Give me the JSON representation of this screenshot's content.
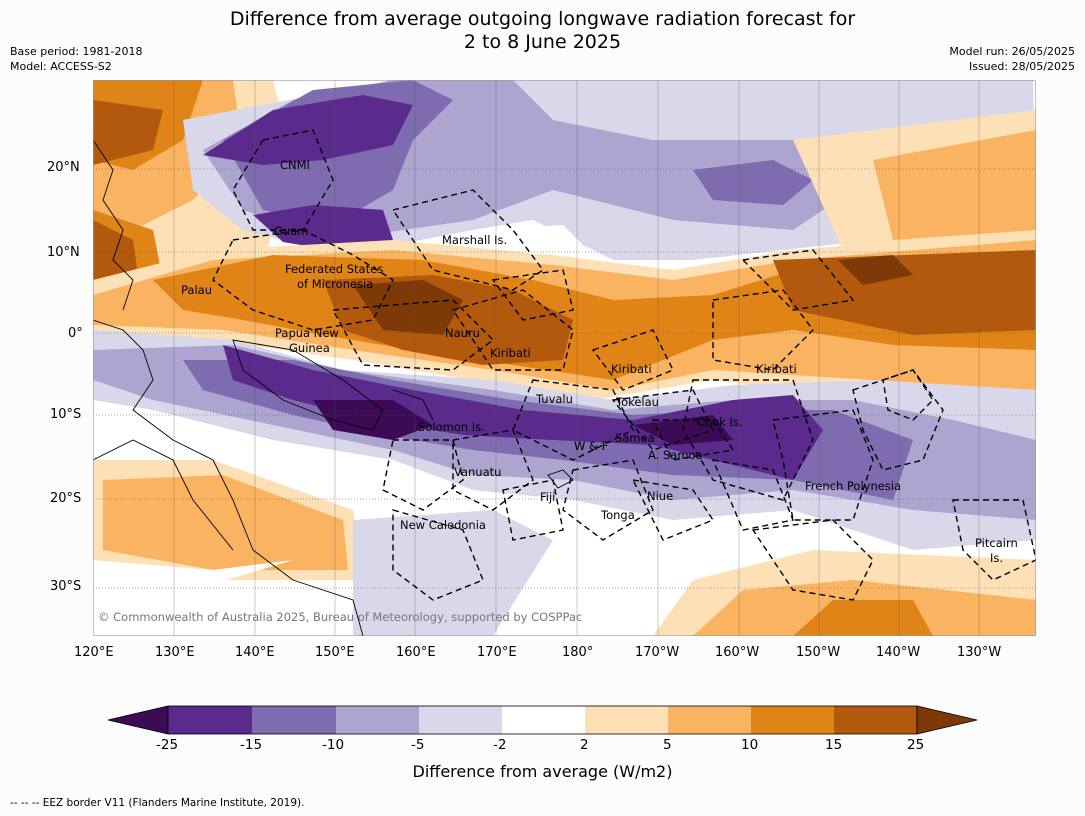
{
  "header": {
    "title_line1": "Difference from average outgoing longwave radiation forecast for",
    "title_line2": "2 to 8 June 2025",
    "base_period": "Base period: 1981-2018",
    "model": "Model: ACCESS-S2",
    "model_run": "Model run: 26/05/2025",
    "issued": "Issued: 28/05/2025"
  },
  "map": {
    "lat_ticks": [
      "20°N",
      "10°N",
      "0°",
      "10°S",
      "20°S",
      "30°S"
    ],
    "lon_ticks": [
      "120°E",
      "130°E",
      "140°E",
      "150°E",
      "160°E",
      "170°E",
      "180°",
      "170°W",
      "160°W",
      "150°W",
      "140°W",
      "130°W"
    ],
    "copyright": "© Commonwealth of Australia 2025, Bureau of Meteorology, supported by COSPPac",
    "places": [
      {
        "name": "CNMI"
      },
      {
        "name": "Guam"
      },
      {
        "name": "Marshall Is."
      },
      {
        "name": "Federated States"
      },
      {
        "name": "of Micronesia"
      },
      {
        "name": "Palau"
      },
      {
        "name": "Papua New"
      },
      {
        "name": "Guinea"
      },
      {
        "name": "Nauru"
      },
      {
        "name": "Kiribati"
      },
      {
        "name": "Kiribati"
      },
      {
        "name": "Kiribati"
      },
      {
        "name": "Tuvalu"
      },
      {
        "name": "Tokelau"
      },
      {
        "name": "Solomon Is."
      },
      {
        "name": "W & F"
      },
      {
        "name": "Samoa"
      },
      {
        "name": "A. Samoa"
      },
      {
        "name": "Cook Is."
      },
      {
        "name": "Vanuatu"
      },
      {
        "name": "Fiji"
      },
      {
        "name": "Niue"
      },
      {
        "name": "Tonga"
      },
      {
        "name": "French Polynesia"
      },
      {
        "name": "New Caledonia"
      },
      {
        "name": "Pitcairn"
      },
      {
        "name": "Is."
      }
    ]
  },
  "legend": {
    "title": "Difference from average (W/m2)",
    "labels": [
      "-25",
      "-15",
      "-10",
      "-5",
      "-2",
      "2",
      "5",
      "10",
      "15",
      "25"
    ],
    "colors": [
      "#5a2a8c",
      "#7e6bb0",
      "#aca5d0",
      "#d9d8eb",
      "#ffffff",
      "#fde0b5",
      "#fab461",
      "#e08417",
      "#b3590d"
    ],
    "colors_extend": [
      "#3d0a55",
      "#7d3a06"
    ]
  },
  "footer": {
    "text": "--  --  -- EEZ border V11 (Flanders Marine Institute, 2019)."
  }
}
